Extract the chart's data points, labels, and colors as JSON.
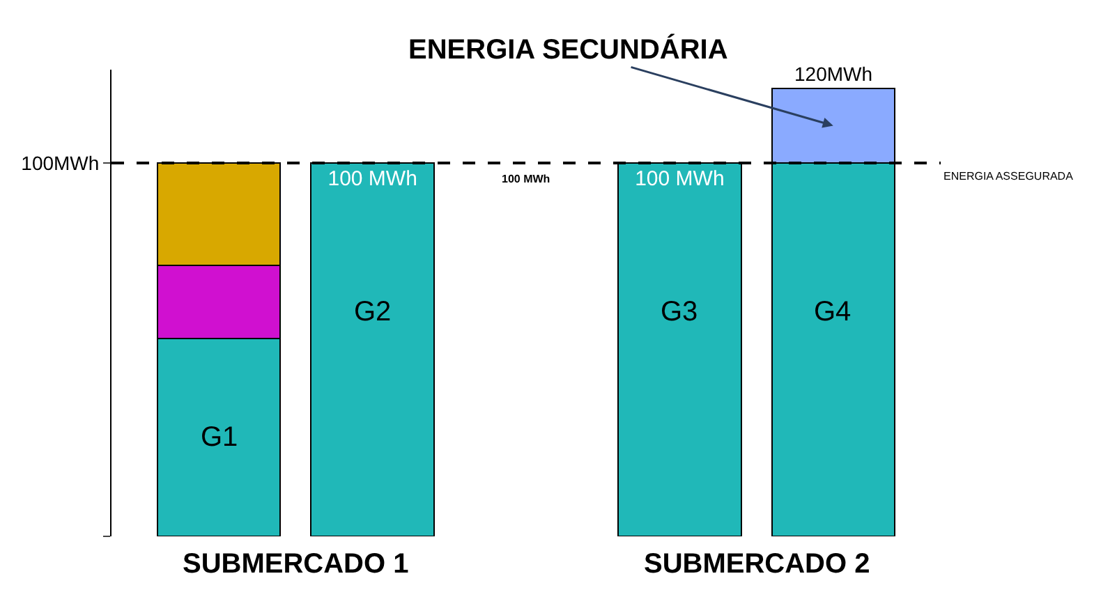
{
  "chart_data": {
    "type": "bar",
    "stacked": true,
    "categories": [
      "G1",
      "G2",
      null,
      "G3",
      "G4"
    ],
    "series": [
      {
        "color": "#20b8b8",
        "values": [
          53,
          100,
          null,
          100,
          100
        ],
        "value_labels": [
          null,
          "100 MWh",
          null,
          "100 MWh",
          null
        ]
      },
      {
        "color": "#d010d0",
        "values": [
          19.5,
          null,
          null,
          null,
          null
        ]
      },
      {
        "color": "#d8a800",
        "values": [
          27.5,
          null,
          null,
          null,
          null
        ]
      },
      {
        "color": "#8aaaff",
        "values": [
          null,
          null,
          null,
          null,
          20
        ]
      }
    ],
    "totals": [
      null,
      null,
      null,
      null,
      "120MWh"
    ],
    "ylim": [
      0,
      125
    ],
    "yticks": [
      {
        "value": 0,
        "label": null
      },
      {
        "value": 100,
        "label": "100MWh"
      }
    ],
    "ref_lines": [
      {
        "axis": "y",
        "value": 100,
        "label": "ENERGIA ASSEGURADA",
        "color": "#000000",
        "line_style": "dashed"
      }
    ],
    "annotations": [
      "ENERGIA SECUNDÁRIA",
      "100 MWh",
      "SUBMERCADO 1",
      "SUBMERCADO 2"
    ]
  }
}
